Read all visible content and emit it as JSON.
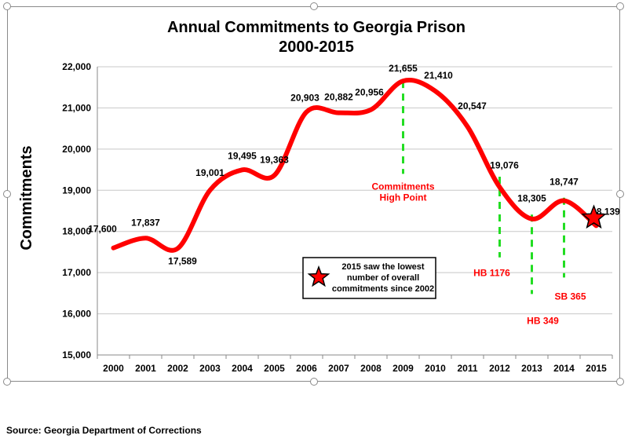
{
  "source_note": "Source: Georgia Department of Corrections",
  "colors": {
    "line": "#ff0000",
    "marker_lines": "#22dd22",
    "annotation_text": "#ff0000",
    "grid": "#c8c8c8",
    "star_fill": "#ff0000",
    "star_stroke": "#000000"
  },
  "chart_data": {
    "type": "line",
    "title": "Annual Commitments to Georgia Prison",
    "subtitle": "2000-2015",
    "xlabel": "",
    "ylabel": "Commitments",
    "ylim": [
      15000,
      22000
    ],
    "y_ticks": [
      "15,000",
      "16,000",
      "17,000",
      "18,000",
      "19,000",
      "20,000",
      "21,000",
      "22,000"
    ],
    "categories": [
      "2000",
      "2001",
      "2002",
      "2003",
      "2004",
      "2005",
      "2006",
      "2007",
      "2008",
      "2009",
      "2010",
      "2011",
      "2012",
      "2013",
      "2014",
      "2015"
    ],
    "values": [
      17600,
      17837,
      17589,
      19001,
      19495,
      19363,
      20903,
      20882,
      20956,
      21655,
      21410,
      20547,
      19076,
      18305,
      18747,
      18139
    ],
    "data_labels": [
      "17,600",
      "17,837",
      "17,589",
      "19,001",
      "19,495",
      "19,363",
      "20,903",
      "20,882",
      "20,956",
      "21,655",
      "21,410",
      "20,547",
      "19,076",
      "18,305",
      "18,747",
      "18,139"
    ],
    "grid": true,
    "smooth": true,
    "annotations": [
      {
        "text": "Commitments\nHigh Point",
        "year": "2009",
        "from_value": 21655,
        "to_value": 19400
      },
      {
        "text": "HB 1176",
        "year": "2012",
        "from_value": 19330,
        "to_value": 17370
      },
      {
        "text": "HB 349",
        "year": "2013",
        "from_value": 18410,
        "to_value": 16480
      },
      {
        "text": "SB 365",
        "year": "2014",
        "from_value": 18820,
        "to_value": 16880
      }
    ],
    "star_marker": {
      "year": "2015",
      "value": 18330
    },
    "legend_box": {
      "text": "2015 saw the lowest\nnumber of overall\ncommitments since 2002"
    }
  }
}
